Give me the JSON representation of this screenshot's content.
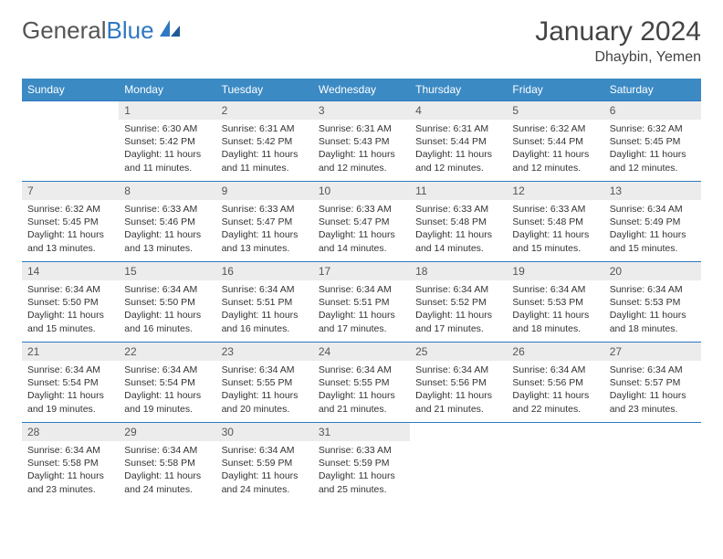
{
  "brand": {
    "part1": "General",
    "part2": "Blue"
  },
  "title": "January 2024",
  "location": "Dhaybin, Yemen",
  "colors": {
    "header_bg": "#3b8ac4",
    "header_text": "#ffffff",
    "daynum_bg": "#ececec",
    "border": "#2f78c2",
    "logo_gray": "#555555",
    "logo_blue": "#2f78c2"
  },
  "weekdays": [
    "Sunday",
    "Monday",
    "Tuesday",
    "Wednesday",
    "Thursday",
    "Friday",
    "Saturday"
  ],
  "weeks": [
    [
      {
        "n": "",
        "lines": [
          "",
          "",
          ""
        ]
      },
      {
        "n": "1",
        "lines": [
          "Sunrise: 6:30 AM",
          "Sunset: 5:42 PM",
          "Daylight: 11 hours and 11 minutes."
        ]
      },
      {
        "n": "2",
        "lines": [
          "Sunrise: 6:31 AM",
          "Sunset: 5:42 PM",
          "Daylight: 11 hours and 11 minutes."
        ]
      },
      {
        "n": "3",
        "lines": [
          "Sunrise: 6:31 AM",
          "Sunset: 5:43 PM",
          "Daylight: 11 hours and 12 minutes."
        ]
      },
      {
        "n": "4",
        "lines": [
          "Sunrise: 6:31 AM",
          "Sunset: 5:44 PM",
          "Daylight: 11 hours and 12 minutes."
        ]
      },
      {
        "n": "5",
        "lines": [
          "Sunrise: 6:32 AM",
          "Sunset: 5:44 PM",
          "Daylight: 11 hours and 12 minutes."
        ]
      },
      {
        "n": "6",
        "lines": [
          "Sunrise: 6:32 AM",
          "Sunset: 5:45 PM",
          "Daylight: 11 hours and 12 minutes."
        ]
      }
    ],
    [
      {
        "n": "7",
        "lines": [
          "Sunrise: 6:32 AM",
          "Sunset: 5:45 PM",
          "Daylight: 11 hours and 13 minutes."
        ]
      },
      {
        "n": "8",
        "lines": [
          "Sunrise: 6:33 AM",
          "Sunset: 5:46 PM",
          "Daylight: 11 hours and 13 minutes."
        ]
      },
      {
        "n": "9",
        "lines": [
          "Sunrise: 6:33 AM",
          "Sunset: 5:47 PM",
          "Daylight: 11 hours and 13 minutes."
        ]
      },
      {
        "n": "10",
        "lines": [
          "Sunrise: 6:33 AM",
          "Sunset: 5:47 PM",
          "Daylight: 11 hours and 14 minutes."
        ]
      },
      {
        "n": "11",
        "lines": [
          "Sunrise: 6:33 AM",
          "Sunset: 5:48 PM",
          "Daylight: 11 hours and 14 minutes."
        ]
      },
      {
        "n": "12",
        "lines": [
          "Sunrise: 6:33 AM",
          "Sunset: 5:48 PM",
          "Daylight: 11 hours and 15 minutes."
        ]
      },
      {
        "n": "13",
        "lines": [
          "Sunrise: 6:34 AM",
          "Sunset: 5:49 PM",
          "Daylight: 11 hours and 15 minutes."
        ]
      }
    ],
    [
      {
        "n": "14",
        "lines": [
          "Sunrise: 6:34 AM",
          "Sunset: 5:50 PM",
          "Daylight: 11 hours and 15 minutes."
        ]
      },
      {
        "n": "15",
        "lines": [
          "Sunrise: 6:34 AM",
          "Sunset: 5:50 PM",
          "Daylight: 11 hours and 16 minutes."
        ]
      },
      {
        "n": "16",
        "lines": [
          "Sunrise: 6:34 AM",
          "Sunset: 5:51 PM",
          "Daylight: 11 hours and 16 minutes."
        ]
      },
      {
        "n": "17",
        "lines": [
          "Sunrise: 6:34 AM",
          "Sunset: 5:51 PM",
          "Daylight: 11 hours and 17 minutes."
        ]
      },
      {
        "n": "18",
        "lines": [
          "Sunrise: 6:34 AM",
          "Sunset: 5:52 PM",
          "Daylight: 11 hours and 17 minutes."
        ]
      },
      {
        "n": "19",
        "lines": [
          "Sunrise: 6:34 AM",
          "Sunset: 5:53 PM",
          "Daylight: 11 hours and 18 minutes."
        ]
      },
      {
        "n": "20",
        "lines": [
          "Sunrise: 6:34 AM",
          "Sunset: 5:53 PM",
          "Daylight: 11 hours and 18 minutes."
        ]
      }
    ],
    [
      {
        "n": "21",
        "lines": [
          "Sunrise: 6:34 AM",
          "Sunset: 5:54 PM",
          "Daylight: 11 hours and 19 minutes."
        ]
      },
      {
        "n": "22",
        "lines": [
          "Sunrise: 6:34 AM",
          "Sunset: 5:54 PM",
          "Daylight: 11 hours and 19 minutes."
        ]
      },
      {
        "n": "23",
        "lines": [
          "Sunrise: 6:34 AM",
          "Sunset: 5:55 PM",
          "Daylight: 11 hours and 20 minutes."
        ]
      },
      {
        "n": "24",
        "lines": [
          "Sunrise: 6:34 AM",
          "Sunset: 5:55 PM",
          "Daylight: 11 hours and 21 minutes."
        ]
      },
      {
        "n": "25",
        "lines": [
          "Sunrise: 6:34 AM",
          "Sunset: 5:56 PM",
          "Daylight: 11 hours and 21 minutes."
        ]
      },
      {
        "n": "26",
        "lines": [
          "Sunrise: 6:34 AM",
          "Sunset: 5:56 PM",
          "Daylight: 11 hours and 22 minutes."
        ]
      },
      {
        "n": "27",
        "lines": [
          "Sunrise: 6:34 AM",
          "Sunset: 5:57 PM",
          "Daylight: 11 hours and 23 minutes."
        ]
      }
    ],
    [
      {
        "n": "28",
        "lines": [
          "Sunrise: 6:34 AM",
          "Sunset: 5:58 PM",
          "Daylight: 11 hours and 23 minutes."
        ]
      },
      {
        "n": "29",
        "lines": [
          "Sunrise: 6:34 AM",
          "Sunset: 5:58 PM",
          "Daylight: 11 hours and 24 minutes."
        ]
      },
      {
        "n": "30",
        "lines": [
          "Sunrise: 6:34 AM",
          "Sunset: 5:59 PM",
          "Daylight: 11 hours and 24 minutes."
        ]
      },
      {
        "n": "31",
        "lines": [
          "Sunrise: 6:33 AM",
          "Sunset: 5:59 PM",
          "Daylight: 11 hours and 25 minutes."
        ]
      },
      {
        "n": "",
        "lines": [
          "",
          "",
          ""
        ]
      },
      {
        "n": "",
        "lines": [
          "",
          "",
          ""
        ]
      },
      {
        "n": "",
        "lines": [
          "",
          "",
          ""
        ]
      }
    ]
  ]
}
